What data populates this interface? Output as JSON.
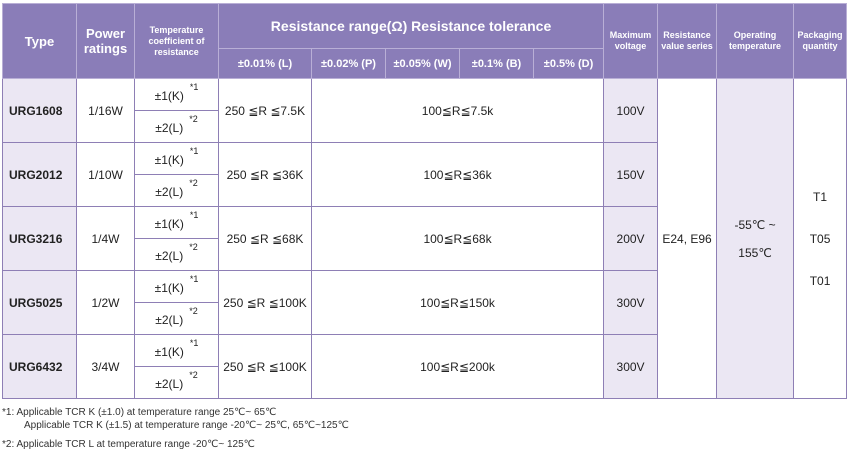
{
  "header": {
    "type": "Type",
    "power": "Power ratings",
    "tcr": "Temperature coefficient of resistance",
    "range_title": "Resistance range(Ω) Resistance tolerance",
    "tolerances": [
      "±0.01% (L)",
      "±0.02% (P)",
      "±0.05% (W)",
      "±0.1% (B)",
      "±0.5% (D)"
    ],
    "max_voltage": "Maximum voltage",
    "series": "Resistance value series",
    "op_temp": "Operating temperature",
    "packaging": "Packaging quantity"
  },
  "rows": [
    {
      "type": "URG1608",
      "power": "1/16W",
      "tcr1": "±1(K)",
      "tcr2": "±2(L)",
      "range_l": "250 ≦R ≦7.5K",
      "range_rest": "100≦R≦7.5k",
      "voltage": "100V"
    },
    {
      "type": "URG2012",
      "power": "1/10W",
      "tcr1": "±1(K)",
      "tcr2": "±2(L)",
      "range_l": "250 ≦R ≦36K",
      "range_rest": "100≦R≦36k",
      "voltage": "150V"
    },
    {
      "type": "URG3216",
      "power": "1/4W",
      "tcr1": "±1(K)",
      "tcr2": "±2(L)",
      "range_l": "250 ≦R ≦68K",
      "range_rest": "100≦R≦68k",
      "voltage": "200V"
    },
    {
      "type": "URG5025",
      "power": "1/2W",
      "tcr1": "±1(K)",
      "tcr2": "±2(L)",
      "range_l": "250 ≦R ≦100K",
      "range_rest": "100≦R≦150k",
      "voltage": "300V"
    },
    {
      "type": "URG6432",
      "power": "3/4W",
      "tcr1": "±1(K)",
      "tcr2": "±2(L)",
      "range_l": "250 ≦R ≦100K",
      "range_rest": "100≦R≦200k",
      "voltage": "300V"
    }
  ],
  "marks": {
    "n1": "*1",
    "n2": "*2"
  },
  "shared": {
    "series": "E24, E96",
    "op_temp_line1": "-55℃ ~",
    "op_temp_line2": "155℃",
    "pack1": "T1",
    "pack2": "T05",
    "pack3": "T01"
  },
  "notes": {
    "line1": "*1: Applicable TCR K (±1.0) at temperature range 25℃~ 65℃",
    "line2": "Applicable TCR K (±1.5) at temperature range -20℃~ 25℃, 65℃~125℃",
    "line3": "*2: Applicable TCR L at temperature range -20℃~ 125℃"
  }
}
